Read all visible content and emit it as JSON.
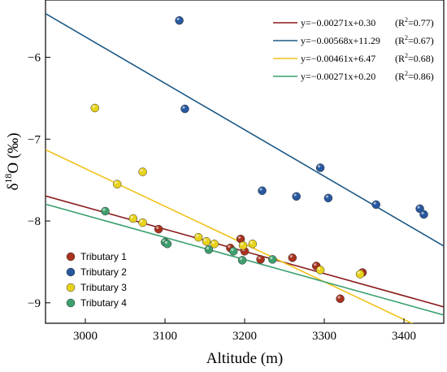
{
  "chart_data": {
    "type": "scatter",
    "xlabel": "Altitude (m)",
    "ylabel_main": "δ",
    "ylabel_sup": "18",
    "ylabel_rest": "O (‰)",
    "xlim": [
      2950,
      3450
    ],
    "ylim": [
      -9.25,
      -5.3
    ],
    "xticks": [
      3000,
      3100,
      3200,
      3300,
      3400
    ],
    "yticks": [
      -6,
      -7,
      -8,
      -9
    ],
    "ytick_labels": [
      "−6",
      "−7",
      "−8",
      "−9"
    ],
    "grid": false,
    "series": [
      {
        "name": "Tributary 1",
        "color": "#a8321e",
        "points": [
          [
            3092,
            -8.1
          ],
          [
            3182,
            -8.33
          ],
          [
            3195,
            -8.22
          ],
          [
            3200,
            -8.37
          ],
          [
            3220,
            -8.47
          ],
          [
            3260,
            -8.45
          ],
          [
            3290,
            -8.55
          ],
          [
            3320,
            -8.95
          ],
          [
            3348,
            -8.63
          ]
        ]
      },
      {
        "name": "Tributary 2",
        "color": "#27579e",
        "points": [
          [
            3118,
            -5.55
          ],
          [
            3125,
            -6.63
          ],
          [
            3222,
            -7.63
          ],
          [
            3265,
            -7.7
          ],
          [
            3295,
            -7.35
          ],
          [
            3305,
            -7.72
          ],
          [
            3365,
            -7.8
          ],
          [
            3420,
            -7.85
          ],
          [
            3425,
            -7.92
          ]
        ]
      },
      {
        "name": "Tributary 3",
        "color": "#e8d21c",
        "points": [
          [
            3012,
            -6.62
          ],
          [
            3040,
            -7.55
          ],
          [
            3072,
            -7.4
          ],
          [
            3060,
            -7.97
          ],
          [
            3072,
            -8.02
          ],
          [
            3142,
            -8.2
          ],
          [
            3152,
            -8.25
          ],
          [
            3162,
            -8.28
          ],
          [
            3198,
            -8.3
          ],
          [
            3210,
            -8.28
          ],
          [
            3295,
            -8.6
          ],
          [
            3345,
            -8.65
          ]
        ]
      },
      {
        "name": "Tributary 4",
        "color": "#3e9e6e",
        "points": [
          [
            3025,
            -7.88
          ],
          [
            3100,
            -8.26
          ],
          [
            3103,
            -8.28
          ],
          [
            3155,
            -8.35
          ],
          [
            3186,
            -8.37
          ],
          [
            3197,
            -8.48
          ],
          [
            3235,
            -8.47
          ]
        ]
      }
    ],
    "fit_lines": [
      {
        "label": "y=−0.00271x+0.30",
        "r2_value": "=0.77",
        "color": "#8b1a1a",
        "slope": -0.00271,
        "intercept": 0.3
      },
      {
        "label": "y=−0.00568x+11.29",
        "r2_value": "=0.67",
        "color": "#1f5a86",
        "slope": -0.00568,
        "intercept": 11.29
      },
      {
        "label": "y=−0.00461x+6.47",
        "r2_value": "=0.68",
        "color": "#f0c21a",
        "slope": -0.00461,
        "intercept": 6.47
      },
      {
        "label": "y=−0.00271x+0.20",
        "r2_value": "=0.86",
        "color": "#3aa06e",
        "slope": -0.00271,
        "intercept": 0.2
      }
    ]
  }
}
